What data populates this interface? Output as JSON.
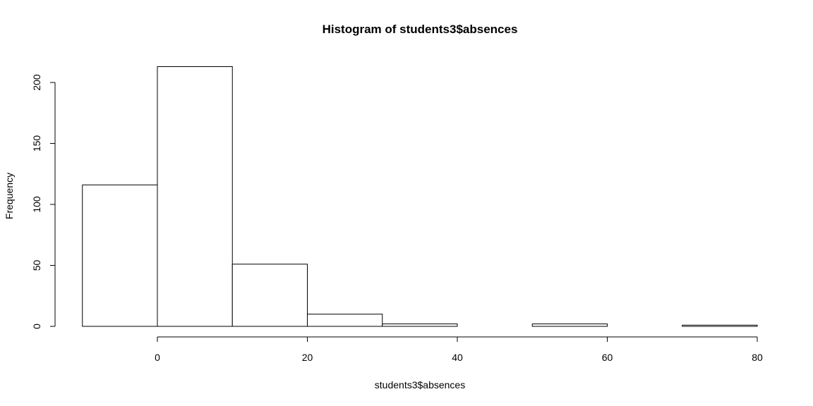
{
  "chart_data": {
    "type": "bar",
    "title": "Histogram of students3$absences",
    "xlabel": "students3$absences",
    "ylabel": "Frequency",
    "bins": [
      {
        "start": -10,
        "end": 0,
        "count": 116
      },
      {
        "start": 0,
        "end": 10,
        "count": 213
      },
      {
        "start": 10,
        "end": 20,
        "count": 51
      },
      {
        "start": 20,
        "end": 30,
        "count": 10
      },
      {
        "start": 30,
        "end": 40,
        "count": 2
      },
      {
        "start": 40,
        "end": 50,
        "count": 0
      },
      {
        "start": 50,
        "end": 60,
        "count": 2
      },
      {
        "start": 60,
        "end": 70,
        "count": 0
      },
      {
        "start": 70,
        "end": 80,
        "count": 1
      }
    ],
    "x_ticks": [
      0,
      20,
      40,
      60,
      80
    ],
    "y_ticks": [
      0,
      50,
      100,
      150,
      200
    ],
    "xlim": [
      -10,
      80
    ],
    "ylim": [
      0,
      213
    ],
    "grid": false,
    "legend": "none"
  }
}
